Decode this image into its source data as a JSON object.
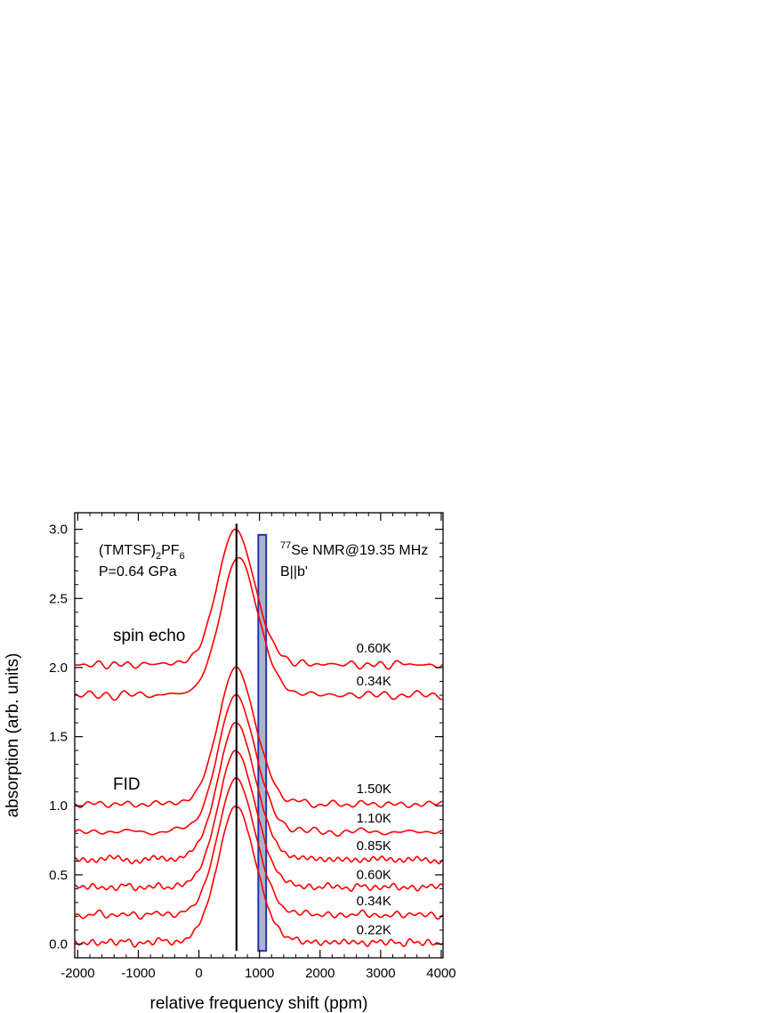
{
  "chart_data": {
    "type": "line",
    "title": "",
    "xlabel": "relative frequency shift (ppm)",
    "ylabel": "absorption (arb. units)",
    "xlim": [
      -2050,
      4030
    ],
    "ylim": [
      -0.1,
      3.12
    ],
    "x_ticks": [
      -2000,
      -1000,
      0,
      1000,
      2000,
      3000,
      4000
    ],
    "y_ticks": [
      0.0,
      0.5,
      1.0,
      1.5,
      2.0,
      2.5,
      3.0
    ],
    "x_tick_labels": [
      "-2000",
      "-1000",
      "0",
      "1000",
      "2000",
      "3000",
      "4000"
    ],
    "y_tick_labels": [
      "0.0",
      "0.5",
      "1.0",
      "1.5",
      "2.0",
      "2.5",
      "3.0"
    ],
    "grid": false,
    "annotations": {
      "compound_main": "(TMTSF)",
      "compound_sub1": "2",
      "compound_mid": "PF",
      "compound_sub2": "6",
      "pressure": "P=0.64 GPa",
      "nmr_sup": "77",
      "nmr_main": "Se NMR@19.35 MHz",
      "field": "B||b'",
      "spin_echo": "spin echo",
      "fid": "FID"
    },
    "reference_line": {
      "x": 620,
      "color": "#000000"
    },
    "shaded_band": {
      "x_start": 980,
      "x_end": 1110,
      "fill": "#aab4cc",
      "edge": "#2233bb"
    },
    "series_color": "#ff0000",
    "series": [
      {
        "name": "0.60K",
        "group": "spin echo",
        "baseline": 2.02,
        "peak_x": 600,
        "peak_y": 3.0,
        "label_x": 2600,
        "label_y": 2.11
      },
      {
        "name": "0.34K",
        "group": "spin echo",
        "baseline": 1.8,
        "peak_x": 650,
        "peak_y": 2.8,
        "label_x": 2600,
        "label_y": 1.87
      },
      {
        "name": "1.50K",
        "group": "FID",
        "baseline": 1.01,
        "peak_x": 610,
        "peak_y": 2.0,
        "label_x": 2600,
        "label_y": 1.09
      },
      {
        "name": "1.10K",
        "group": "FID",
        "baseline": 0.81,
        "peak_x": 610,
        "peak_y": 1.8,
        "label_x": 2600,
        "label_y": 0.88
      },
      {
        "name": "0.85K",
        "group": "FID",
        "baseline": 0.61,
        "peak_x": 610,
        "peak_y": 1.6,
        "label_x": 2600,
        "label_y": 0.68
      },
      {
        "name": "0.60K",
        "group": "FID",
        "baseline": 0.41,
        "peak_x": 610,
        "peak_y": 1.4,
        "label_x": 2600,
        "label_y": 0.47
      },
      {
        "name": "0.34K",
        "group": "FID",
        "baseline": 0.21,
        "peak_x": 610,
        "peak_y": 1.2,
        "label_x": 2600,
        "label_y": 0.28
      },
      {
        "name": "0.22K",
        "group": "FID",
        "baseline": 0.01,
        "peak_x": 610,
        "peak_y": 1.0,
        "label_x": 2600,
        "label_y": 0.07
      }
    ]
  }
}
